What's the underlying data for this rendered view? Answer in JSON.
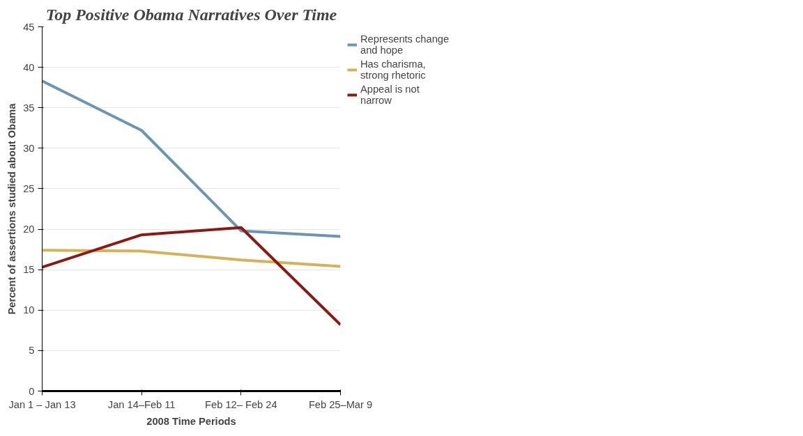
{
  "chart_data": {
    "type": "line",
    "title": "Top Positive Obama Narratives Over Time",
    "xlabel": "2008 Time Periods",
    "ylabel": "Percent of assertions studied about Obama",
    "categories": [
      "Jan 1 – Jan 13",
      "Jan 14–Feb 11",
      "Feb 12– Feb 24",
      "Feb 25–Mar 9"
    ],
    "series": [
      {
        "name": "Represents change and hope",
        "color": "#6a96b4",
        "values": [
          38.3,
          32.2,
          19.8,
          19.1
        ]
      },
      {
        "name": "Has charisma, strong rhetoric",
        "color": "#d4b256",
        "values": [
          17.4,
          17.3,
          16.2,
          15.4
        ]
      },
      {
        "name": "Appeal is not narrow",
        "color": "#8b1a13",
        "values": [
          15.3,
          19.3,
          20.2,
          8.2
        ]
      }
    ],
    "ylim": [
      0,
      45
    ],
    "yticks": [
      0,
      5,
      10,
      15,
      20,
      25,
      30,
      35,
      40,
      45
    ],
    "grid": "y",
    "legend": "right",
    "marker": "none",
    "line_style": "solid"
  }
}
